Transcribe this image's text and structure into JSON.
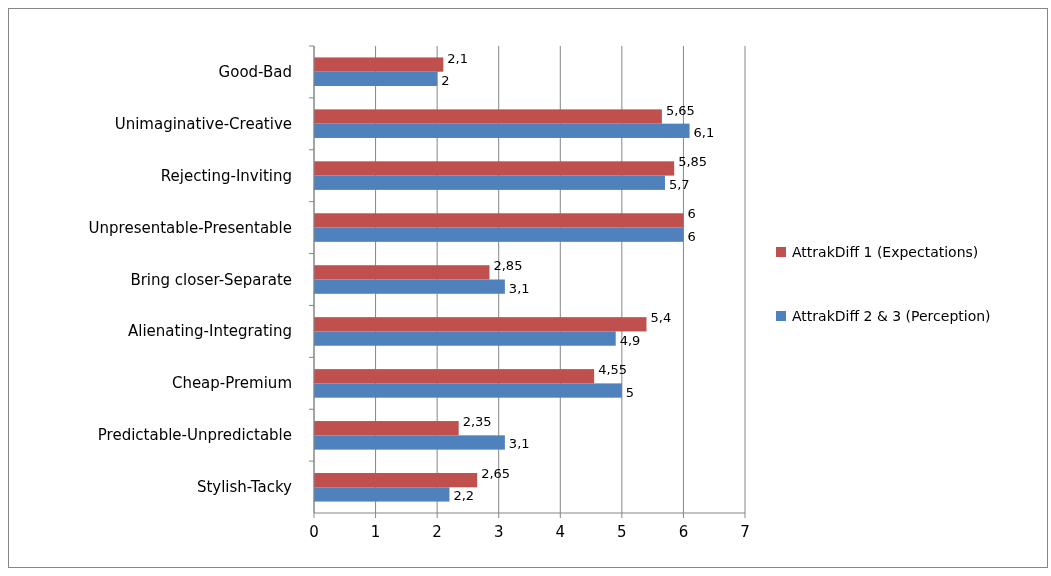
{
  "chart_data": {
    "type": "bar",
    "orientation": "horizontal",
    "categories": [
      "Good-Bad",
      "Unimaginative-Creative",
      "Rejecting-Inviting",
      "Unpresentable-Presentable",
      "Bring closer-Separate",
      "Alienating-Integrating",
      "Cheap-Premium",
      "Predictable-Unpredictable",
      "Stylish-Tacky"
    ],
    "series": [
      {
        "name": "AttrakDiff 1 (Expectations)",
        "color": "#c0504d",
        "values": [
          2.1,
          5.65,
          5.85,
          6,
          2.85,
          5.4,
          4.55,
          2.35,
          2.65
        ],
        "value_labels": [
          "2,1",
          "5,65",
          "5,85",
          "6",
          "2,85",
          "5,4",
          "4,55",
          "2,35",
          "2,65"
        ]
      },
      {
        "name": "AttrakDiff 2 & 3 (Perception)",
        "color": "#4f81bd",
        "values": [
          2,
          6.1,
          5.7,
          6,
          3.1,
          4.9,
          5,
          3.1,
          2.2
        ],
        "value_labels": [
          "2",
          "6,1",
          "5,7",
          "6",
          "3,1",
          "4,9",
          "5",
          "3,1",
          "2,2"
        ]
      }
    ],
    "xlim": [
      0,
      7
    ],
    "xticks": [
      0,
      1,
      2,
      3,
      4,
      5,
      6,
      7
    ],
    "grid": "x",
    "legend": "right"
  }
}
